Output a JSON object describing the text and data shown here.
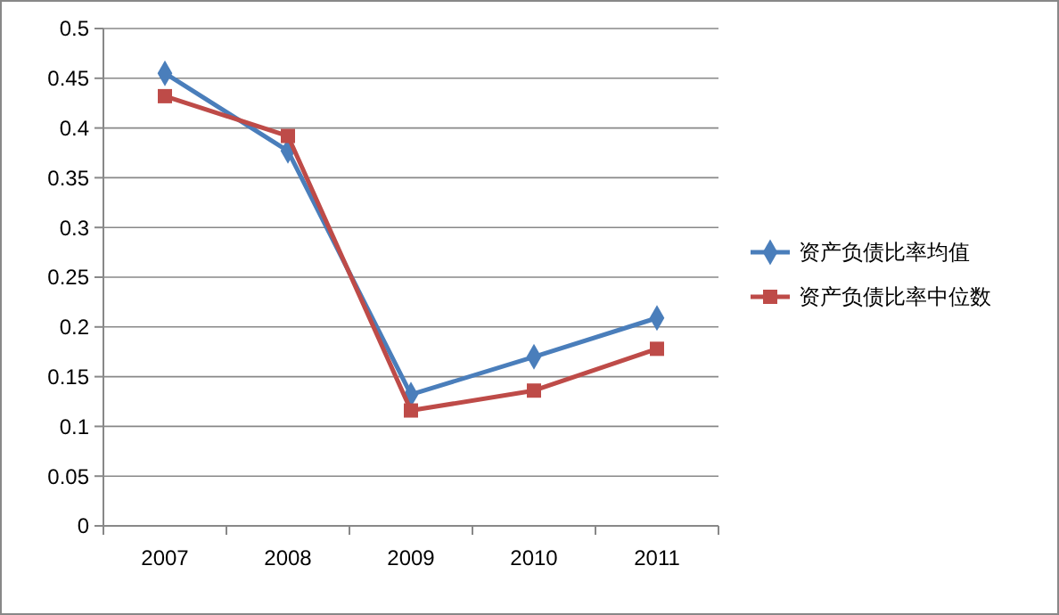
{
  "chart_data": {
    "type": "line",
    "categories": [
      "2007",
      "2008",
      "2009",
      "2010",
      "2011"
    ],
    "series": [
      {
        "name": "资产负债比率均值",
        "color": "#4a7ebb",
        "marker": "diamond",
        "values": [
          0.455,
          0.377,
          0.132,
          0.17,
          0.209
        ]
      },
      {
        "name": "资产负债比率中位数",
        "color": "#be4b48",
        "marker": "square",
        "values": [
          0.432,
          0.392,
          0.116,
          0.136,
          0.178
        ]
      }
    ],
    "ylim": [
      0,
      0.5
    ],
    "yticks": [
      0,
      {
        "value": 0.05,
        "label": "0.05"
      },
      {
        "value": 0.1,
        "label": "0.1"
      },
      {
        "value": 0.15,
        "label": "0.15"
      },
      {
        "value": 0.2,
        "label": "0.2"
      },
      {
        "value": 0.25,
        "label": "0.25"
      },
      {
        "value": 0.3,
        "label": "0.3"
      },
      {
        "value": 0.35,
        "label": "0.35"
      },
      {
        "value": 0.4,
        "label": "0.4"
      },
      {
        "value": 0.45,
        "label": "0.45"
      },
      {
        "value": 0.5,
        "label": "0.5"
      }
    ],
    "grid": "y",
    "legend": "right",
    "line_style": "solid"
  }
}
